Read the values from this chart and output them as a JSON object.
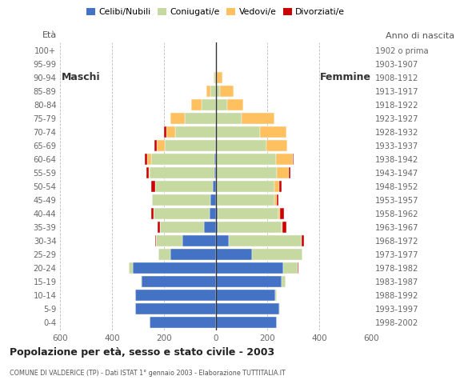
{
  "age_groups": [
    "0-4",
    "5-9",
    "10-14",
    "15-19",
    "20-24",
    "25-29",
    "30-34",
    "35-39",
    "40-44",
    "45-49",
    "50-54",
    "55-59",
    "60-64",
    "65-69",
    "70-74",
    "75-79",
    "80-84",
    "85-89",
    "90-94",
    "95-99",
    "100+"
  ],
  "birth_years": [
    "1998-2002",
    "1993-1997",
    "1988-1992",
    "1983-1987",
    "1978-1982",
    "1973-1977",
    "1968-1972",
    "1963-1967",
    "1958-1962",
    "1953-1957",
    "1948-1952",
    "1943-1947",
    "1938-1942",
    "1933-1937",
    "1928-1932",
    "1923-1927",
    "1918-1922",
    "1913-1917",
    "1908-1912",
    "1903-1907",
    "1902 o prima"
  ],
  "males": {
    "celibe": [
      255,
      310,
      310,
      285,
      320,
      175,
      130,
      45,
      25,
      20,
      10,
      5,
      5,
      2,
      2,
      0,
      0,
      0,
      0,
      0,
      0
    ],
    "coniugato": [
      0,
      0,
      2,
      5,
      15,
      45,
      100,
      170,
      215,
      225,
      225,
      250,
      245,
      195,
      155,
      120,
      55,
      20,
      5,
      0,
      0
    ],
    "vedovo": [
      0,
      0,
      0,
      0,
      0,
      0,
      0,
      0,
      0,
      0,
      0,
      5,
      15,
      30,
      35,
      55,
      40,
      15,
      3,
      0,
      0
    ],
    "divorziato": [
      0,
      0,
      0,
      0,
      0,
      0,
      5,
      8,
      8,
      0,
      15,
      8,
      10,
      10,
      8,
      0,
      0,
      0,
      0,
      0,
      0
    ]
  },
  "females": {
    "nubile": [
      235,
      245,
      230,
      255,
      260,
      140,
      50,
      8,
      8,
      5,
      5,
      2,
      2,
      2,
      2,
      0,
      0,
      0,
      0,
      0,
      0
    ],
    "coniugata": [
      0,
      2,
      5,
      15,
      55,
      195,
      280,
      245,
      235,
      220,
      220,
      235,
      230,
      195,
      170,
      100,
      45,
      15,
      5,
      0,
      0
    ],
    "vedova": [
      0,
      0,
      0,
      0,
      0,
      0,
      0,
      5,
      5,
      10,
      20,
      45,
      65,
      80,
      100,
      125,
      60,
      55,
      20,
      3,
      0
    ],
    "divorziata": [
      0,
      0,
      0,
      0,
      5,
      0,
      10,
      15,
      15,
      8,
      10,
      5,
      3,
      0,
      0,
      0,
      0,
      0,
      0,
      0,
      0
    ]
  },
  "color_celibe": "#4472c4",
  "color_coniugato": "#c6d9a0",
  "color_vedovo": "#ffc060",
  "color_divorziato": "#cc0000",
  "title": "Popolazione per età, sesso e stato civile - 2003",
  "subtitle": "COMUNE DI VALDERICE (TP) - Dati ISTAT 1° gennaio 2003 - Elaborazione TUTTITALIA.IT",
  "xlabel_left": "Maschi",
  "xlabel_right": "Femmine",
  "ylabel": "Età",
  "ylabel_right": "Anno di nascita",
  "xlim": 600,
  "background_color": "#ffffff"
}
